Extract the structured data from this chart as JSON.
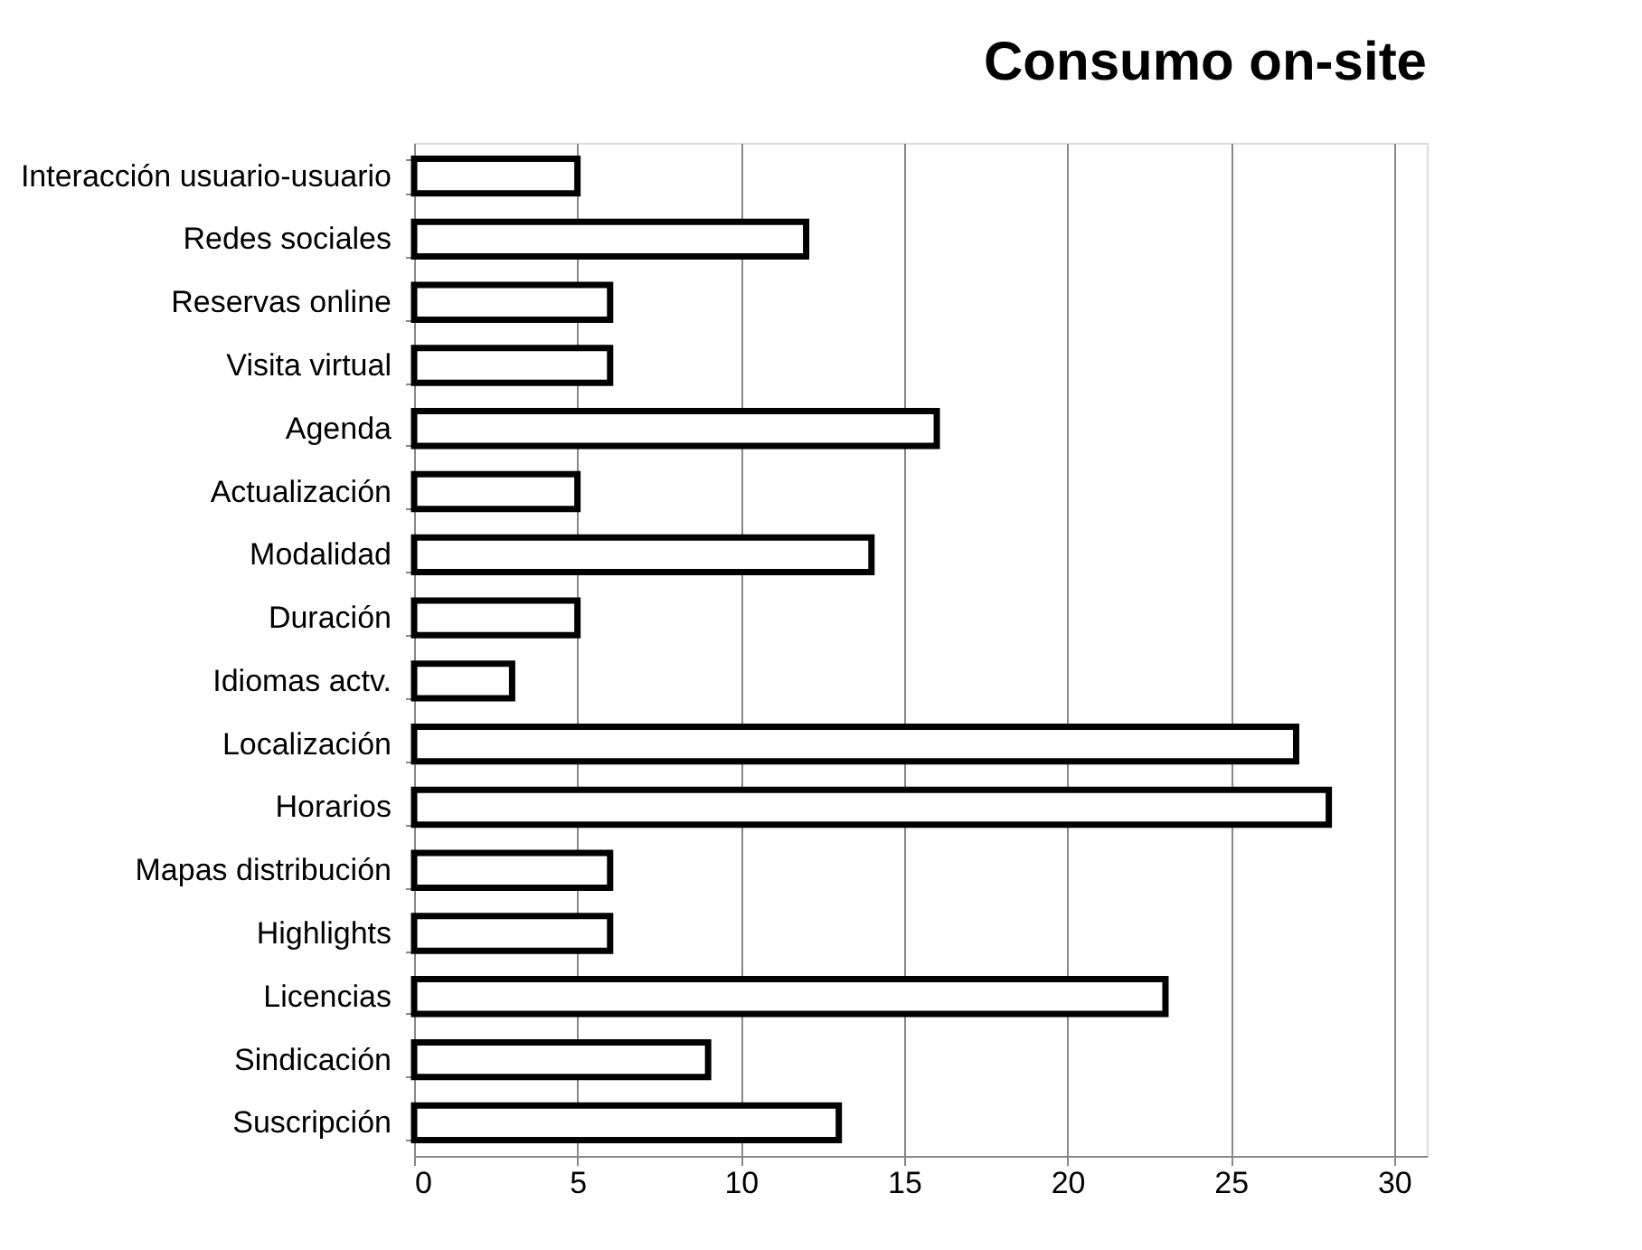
{
  "chart_data": {
    "type": "bar",
    "orientation": "horizontal",
    "title": "Consumo on-site",
    "categories": [
      "Interacción usuario-usuario",
      "Redes sociales",
      "Reservas online",
      "Visita virtual",
      "Agenda",
      "Actualización",
      "Modalidad",
      "Duración",
      "Idiomas actv.",
      "Localización",
      "Horarios",
      "Mapas distribución",
      "Highlights",
      "Licencias",
      "Sindicación",
      "Suscripción"
    ],
    "values": [
      5,
      12,
      6,
      6,
      16,
      5,
      14,
      5,
      3,
      27,
      28,
      6,
      6,
      23,
      9,
      13
    ],
    "color": "#ffffff",
    "xlim": [
      0,
      31
    ],
    "xticks": [
      0,
      5,
      10,
      15,
      20,
      25,
      30
    ],
    "grid": "x"
  }
}
